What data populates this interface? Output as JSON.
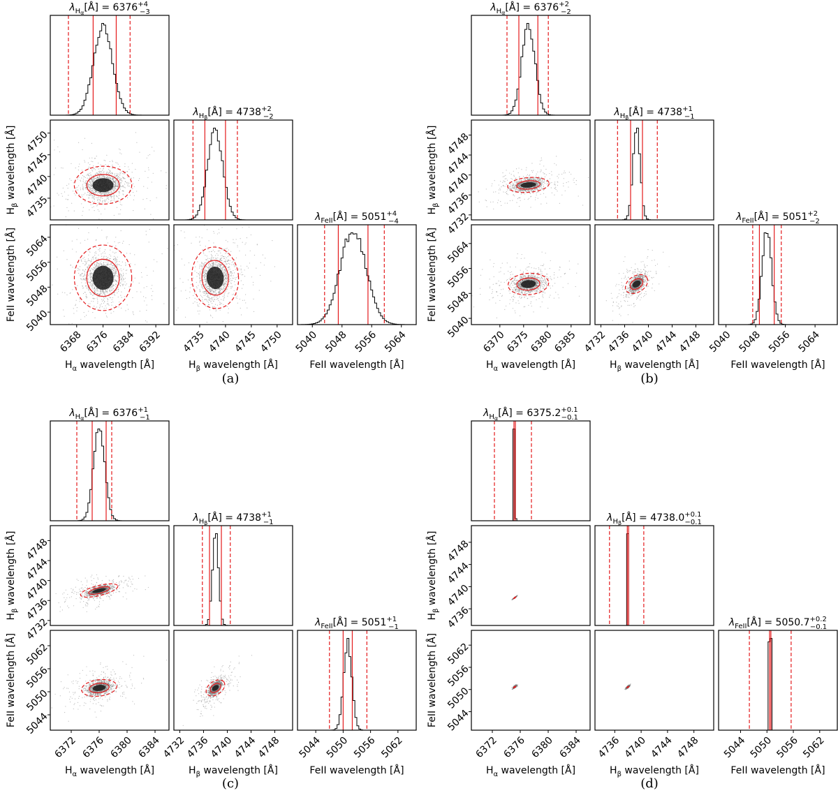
{
  "figure": {
    "panels": [
      {
        "caption": "(a)",
        "hist_titles": [
          {
            "sym": "λ",
            "sub": "H",
            "subsub": "α",
            "unit": "[Å] = 6376",
            "sup": "+4",
            "inf": "−3"
          },
          {
            "sym": "λ",
            "sub": "H",
            "subsub": "β",
            "unit": "[Å] = 4738",
            "sup": "+2",
            "inf": "−2"
          },
          {
            "sym": "λ",
            "sub": "FeII",
            "subsub": "",
            "unit": "[Å] = 5051",
            "sup": "+4",
            "inf": "−4"
          }
        ],
        "xlabels": [
          {
            "main": "H",
            "sub": "α",
            "rest": " wavelength [Å]"
          },
          {
            "main": "H",
            "sub": "β",
            "rest": " wavelength [Å]"
          },
          {
            "main": "FeII",
            "sub": "",
            "rest": " wavelength [Å]"
          }
        ],
        "ylabels": [
          {
            "main": "H",
            "sub": "β",
            "rest": " wavelength [Å]"
          },
          {
            "main": "FeII wavelength [Å]",
            "sub": "",
            "rest": ""
          }
        ]
      },
      {
        "caption": "(b)",
        "hist_titles": [
          {
            "sym": "λ",
            "sub": "H",
            "subsub": "α",
            "unit": "[Å] = 6376",
            "sup": "+2",
            "inf": "−2"
          },
          {
            "sym": "λ",
            "sub": "H",
            "subsub": "β",
            "unit": "[Å] = 4738",
            "sup": "+1",
            "inf": "−1"
          },
          {
            "sym": "λ",
            "sub": "FeII",
            "subsub": "",
            "unit": "[Å] = 5051",
            "sup": "+2",
            "inf": "−2"
          }
        ],
        "xlabels": [
          {
            "main": "H",
            "sub": "α",
            "rest": " wavelength [Å]"
          },
          {
            "main": "H",
            "sub": "β",
            "rest": " wavelength [Å]"
          },
          {
            "main": "FeII",
            "sub": "",
            "rest": " wavelength [Å]"
          }
        ],
        "ylabels": [
          {
            "main": "H",
            "sub": "β",
            "rest": " wavelength [Å]"
          },
          {
            "main": "FeII wavelength [Å]",
            "sub": "",
            "rest": ""
          }
        ]
      },
      {
        "caption": "(c)",
        "hist_titles": [
          {
            "sym": "λ",
            "sub": "H",
            "subsub": "α",
            "unit": "[Å] = 6376",
            "sup": "+1",
            "inf": "−1"
          },
          {
            "sym": "λ",
            "sub": "H",
            "subsub": "β",
            "unit": "[Å] = 4738",
            "sup": "+1",
            "inf": "−1"
          },
          {
            "sym": "λ",
            "sub": "FeII",
            "subsub": "",
            "unit": "[Å] = 5051",
            "sup": "+1",
            "inf": "−1"
          }
        ],
        "xlabels": [
          {
            "main": "H",
            "sub": "α",
            "rest": " wavelength [Å]"
          },
          {
            "main": "H",
            "sub": "β",
            "rest": " wavelength [Å]"
          },
          {
            "main": "FeII",
            "sub": "",
            "rest": " wavelength [Å]"
          }
        ],
        "ylabels": [
          {
            "main": "H",
            "sub": "β",
            "rest": " wavelength [Å]"
          },
          {
            "main": "FeII wavelength [Å]",
            "sub": "",
            "rest": ""
          }
        ]
      },
      {
        "caption": "(d)",
        "hist_titles": [
          {
            "sym": "λ",
            "sub": "H",
            "subsub": "α",
            "unit": "[Å] = 6375.2",
            "sup": "+0.1",
            "inf": "−0.1"
          },
          {
            "sym": "λ",
            "sub": "H",
            "subsub": "β",
            "unit": "[Å] = 4738.0",
            "sup": "+0.1",
            "inf": "−0.1"
          },
          {
            "sym": "λ",
            "sub": "FeII",
            "subsub": "",
            "unit": "[Å] = 5050.7",
            "sup": "+0.2",
            "inf": "−0.1"
          }
        ],
        "xlabels": [
          {
            "main": "H",
            "sub": "α",
            "rest": " wavelength [Å]"
          },
          {
            "main": "H",
            "sub": "β",
            "rest": " wavelength [Å]"
          },
          {
            "main": "FeII",
            "sub": "",
            "rest": " wavelength [Å]"
          }
        ],
        "ylabels": [
          {
            "main": "H",
            "sub": "β",
            "rest": " wavelength [Å]"
          },
          {
            "main": "FeII wavelength [Å]",
            "sub": "",
            "rest": ""
          }
        ]
      }
    ]
  },
  "colors": {
    "line": "#000000",
    "red": "#e41a1c",
    "scatter": "#7a7a7a",
    "core": "#1a1a1a"
  },
  "chart_data": [
    {
      "type": "corner",
      "panel": "(a)",
      "params": [
        {
          "name": "Hα",
          "ticks": [
            6368,
            6376,
            6384,
            6392
          ],
          "range": [
            6360,
            6396
          ],
          "median": 6376,
          "err_lo": 3,
          "err_hi": 4,
          "wide_lo": 6365.5,
          "wide_hi": 6384.2,
          "sd": 2.9
        },
        {
          "name": "Hβ",
          "ticks": [
            4735,
            4740,
            4745,
            4750
          ],
          "range": [
            4730,
            4753
          ],
          "median": 4738,
          "err_lo": 2,
          "err_hi": 2,
          "wide_lo": 4733.7,
          "wide_hi": 4742.3,
          "sd": 1.5
        },
        {
          "name": "FeII",
          "ticks": [
            5040,
            5048,
            5056,
            5064
          ],
          "range": [
            5036,
            5068
          ],
          "median": 5051,
          "err_lo": 4,
          "err_hi": 4,
          "wide_lo": 5043.3,
          "wide_hi": 5059.4,
          "sd": 3.5
        }
      ],
      "hist_y_ticks": [
        4740,
        4745,
        4750,
        4735
      ],
      "scatter_y_ticks_hb": [
        4735,
        4740,
        4745,
        4750
      ],
      "scatter_y_ticks_fe": [
        5040,
        5048,
        5056,
        5064
      ],
      "correlation": {
        "ab": 0.05,
        "ac": 0.0,
        "bc": 0.1
      }
    },
    {
      "type": "corner",
      "panel": "(b)",
      "params": [
        {
          "name": "Hα",
          "ticks": [
            6370,
            6375,
            6380,
            6385
          ],
          "range": [
            6364,
            6389
          ],
          "median": 6376,
          "err_lo": 2,
          "err_hi": 2,
          "wide_lo": 6371.5,
          "wide_hi": 6380.2,
          "sd": 1.4
        },
        {
          "name": "Hβ",
          "ticks": [
            4732,
            4736,
            4740,
            4744,
            4748
          ],
          "range": [
            4731,
            4751
          ],
          "median": 4738,
          "err_lo": 1,
          "err_hi": 1,
          "wide_lo": 4734.8,
          "wide_hi": 4741.5,
          "sd": 0.6
        },
        {
          "name": "FeII",
          "ticks": [
            5040,
            5048,
            5056,
            5064
          ],
          "range": [
            5038,
            5070
          ],
          "median": 5051,
          "err_lo": 2,
          "err_hi": 2,
          "wide_lo": 5047.2,
          "wide_hi": 5054.9,
          "sd": 1.3
        }
      ],
      "scatter_y_ticks_hb": [
        4732,
        4736,
        4740,
        4744,
        4748
      ],
      "scatter_y_ticks_fe": [
        5040,
        5048,
        5056,
        5064
      ],
      "correlation": {
        "ab": 0.3,
        "ac": 0.2,
        "bc": 0.55
      }
    },
    {
      "type": "corner",
      "panel": "(c)",
      "params": [
        {
          "name": "Hα",
          "ticks": [
            6372,
            6376,
            6380,
            6384
          ],
          "range": [
            6369,
            6386
          ],
          "median": 6376,
          "err_lo": 1,
          "err_hi": 1,
          "wide_lo": 6372.8,
          "wide_hi": 6377.8,
          "sd": 0.8
        },
        {
          "name": "Hβ",
          "ticks": [
            4732,
            4736,
            4740,
            4744,
            4748
          ],
          "range": [
            4731,
            4751
          ],
          "median": 4738,
          "err_lo": 1,
          "err_hi": 1,
          "wide_lo": 4735.8,
          "wide_hi": 4740.5,
          "sd": 0.5
        },
        {
          "name": "FeII",
          "ticks": [
            5044,
            5050,
            5056,
            5062
          ],
          "range": [
            5040,
            5066
          ],
          "median": 5051,
          "err_lo": 1,
          "err_hi": 1,
          "wide_lo": 5047.0,
          "wide_hi": 5055.2,
          "sd": 0.9
        }
      ],
      "scatter_y_ticks_hb": [
        4732,
        4736,
        4740,
        4744,
        4748
      ],
      "scatter_y_ticks_fe": [
        5044,
        5050,
        5056,
        5062
      ],
      "correlation": {
        "ab": 0.55,
        "ac": 0.35,
        "bc": 0.6
      }
    },
    {
      "type": "corner",
      "panel": "(d)",
      "params": [
        {
          "name": "Hα",
          "ticks": [
            6372,
            6376,
            6380,
            6384
          ],
          "range": [
            6369,
            6386
          ],
          "median": 6375.2,
          "err_lo": 0.1,
          "err_hi": 0.1,
          "wide_lo": 6372.3,
          "wide_hi": 6377.6,
          "sd": 0.05
        },
        {
          "name": "Hβ",
          "ticks": [
            4736,
            4740,
            4744,
            4748
          ],
          "range": [
            4733,
            4751
          ],
          "median": 4738.0,
          "err_lo": 0.1,
          "err_hi": 0.1,
          "wide_lo": 4735.2,
          "wide_hi": 4740.4,
          "sd": 0.05
        },
        {
          "name": "FeII",
          "ticks": [
            5044,
            5050,
            5056,
            5062
          ],
          "range": [
            5039,
            5066
          ],
          "median": 5050.7,
          "err_lo": 0.1,
          "err_hi": 0.2,
          "wide_lo": 5046.0,
          "wide_hi": 5055.5,
          "sd": 0.08
        }
      ],
      "scatter_y_ticks_hb": [
        4736,
        4740,
        4744,
        4748
      ],
      "scatter_y_ticks_fe": [
        5044,
        5050,
        5056,
        5062
      ],
      "correlation": {
        "ab": 0.97,
        "ac": 0.8,
        "bc": 0.8
      }
    }
  ]
}
